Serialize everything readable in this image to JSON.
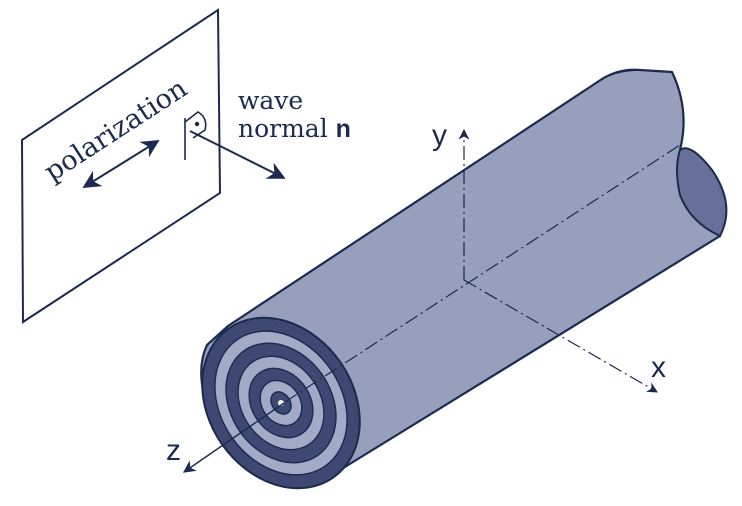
{
  "labels": {
    "polarization": "polarization",
    "wave": "wave",
    "normal": "normal",
    "normal_symbol": "n",
    "axis_x": "x",
    "axis_y": "y",
    "axis_z": "z"
  },
  "colors": {
    "ink": "#1b2a4e",
    "cylinder_body": "#989fbc",
    "cylinder_inner": "#68709a",
    "ring_dark": "#3f4773",
    "ring_light": "#a3aac5",
    "background": "#ffffff"
  },
  "icons": {
    "polarization_arrow": "double-headed-arrow",
    "wave_normal_arrow": "arrow",
    "right_angle_marker": "right-angle-with-dot"
  }
}
